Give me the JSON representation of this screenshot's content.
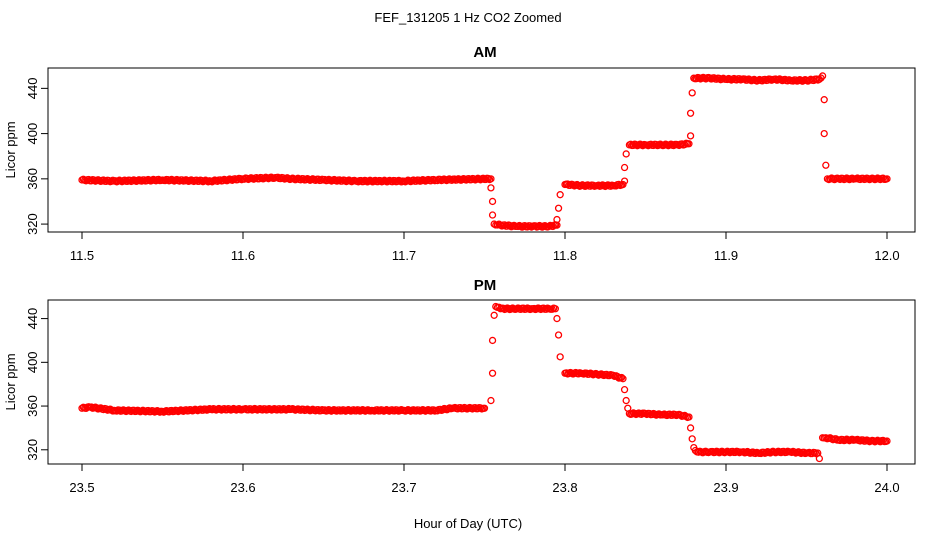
{
  "title": "FEF_131205  1 Hz CO2 Zoomed",
  "xlabel": "Hour of Day (UTC)",
  "point_color": "#ff0000",
  "chart_data": [
    {
      "type": "scatter",
      "title": "AM",
      "xlabel": "Hour of Day (UTC)",
      "ylabel": "Licor ppm",
      "xlim": [
        11.5,
        12.0
      ],
      "ylim": [
        313,
        458
      ],
      "xticks": [
        "11.5",
        "11.6",
        "11.7",
        "11.8",
        "11.9",
        "12.0"
      ],
      "xtick_values": [
        11.5,
        11.6,
        11.7,
        11.8,
        11.9,
        12.0
      ],
      "yticks": [
        "320",
        "360",
        "400",
        "440"
      ],
      "ytick_values": [
        320,
        360,
        400,
        440
      ],
      "grid": false,
      "marker": "open-circle",
      "series": [
        {
          "x": [
            11.5,
            11.52,
            11.55,
            11.58,
            11.6,
            11.62,
            11.63,
            11.65,
            11.67,
            11.7,
            11.72,
            11.754,
            11.754,
            11.755,
            11.755,
            11.756,
            11.76,
            11.77,
            11.78,
            11.79,
            11.795,
            11.795,
            11.796,
            11.797,
            11.8,
            11.81,
            11.82,
            11.83,
            11.836,
            11.837,
            11.837,
            11.838,
            11.84,
            11.85,
            11.86,
            11.87,
            11.877,
            11.878,
            11.878,
            11.879,
            11.88,
            11.89,
            11.9,
            11.91,
            11.92,
            11.93,
            11.94,
            11.95,
            11.958,
            11.96,
            11.961,
            11.961,
            11.962,
            11.963,
            11.97,
            11.98,
            11.99,
            12.0
          ],
          "y": [
            359,
            358,
            359,
            358,
            360,
            361,
            360,
            359,
            358,
            358,
            359,
            360,
            352,
            340,
            328,
            320,
            319,
            318,
            318,
            318,
            319,
            324,
            334,
            346,
            355,
            354,
            354,
            354,
            355,
            358,
            370,
            382,
            390,
            390,
            390,
            390,
            391,
            398,
            418,
            436,
            449,
            449,
            448,
            448,
            447,
            448,
            447,
            447,
            448,
            451,
            430,
            400,
            372,
            360,
            360,
            360,
            360,
            360
          ]
        }
      ]
    },
    {
      "type": "scatter",
      "title": "PM",
      "xlabel": "Hour of Day (UTC)",
      "ylabel": "Licor ppm",
      "xlim": [
        23.5,
        24.0
      ],
      "ylim": [
        307,
        457
      ],
      "xticks": [
        "23.5",
        "23.6",
        "23.7",
        "23.8",
        "23.9",
        "24.0"
      ],
      "xtick_values": [
        23.5,
        23.6,
        23.7,
        23.8,
        23.9,
        24.0
      ],
      "yticks": [
        "320",
        "360",
        "400",
        "440"
      ],
      "ytick_values": [
        320,
        360,
        400,
        440
      ],
      "grid": false,
      "marker": "open-circle",
      "series": [
        {
          "x": [
            23.5,
            23.505,
            23.52,
            23.55,
            23.58,
            23.6,
            23.63,
            23.65,
            23.68,
            23.7,
            23.72,
            23.73,
            23.75,
            23.754,
            23.755,
            23.755,
            23.756,
            23.757,
            23.76,
            23.77,
            23.78,
            23.79,
            23.794,
            23.795,
            23.796,
            23.797,
            23.8,
            23.81,
            23.82,
            23.83,
            23.836,
            23.837,
            23.838,
            23.839,
            23.84,
            23.85,
            23.86,
            23.87,
            23.877,
            23.878,
            23.879,
            23.88,
            23.882,
            23.89,
            23.9,
            23.91,
            23.92,
            23.93,
            23.94,
            23.95,
            23.957,
            23.958,
            23.96,
            23.962,
            23.97,
            23.98,
            23.99,
            24.0
          ],
          "y": [
            358,
            359,
            356,
            355,
            357,
            357,
            357,
            356,
            356,
            356,
            356,
            358,
            358,
            365,
            390,
            420,
            443,
            451,
            449,
            449,
            449,
            449,
            449,
            440,
            425,
            405,
            390,
            390,
            389,
            388,
            385,
            375,
            365,
            358,
            353,
            353,
            352,
            352,
            350,
            340,
            330,
            322,
            318,
            318,
            318,
            318,
            317,
            318,
            318,
            317,
            317,
            312,
            331,
            331,
            329,
            329,
            328,
            328
          ]
        }
      ]
    }
  ]
}
